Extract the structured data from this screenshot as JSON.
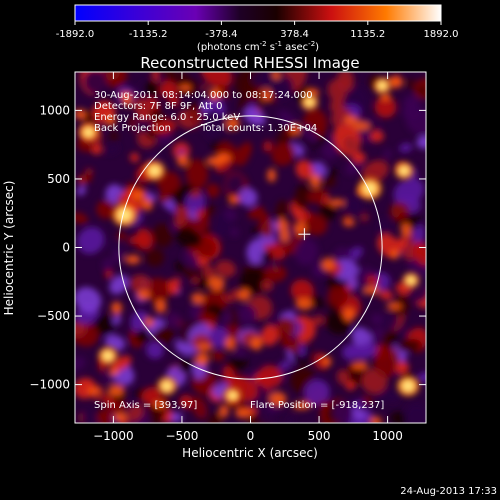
{
  "chart_data": {
    "type": "heatmap",
    "title": "Reconstructed RHESSI Image",
    "colorbar": {
      "ticks": [
        -1892.0,
        -1135.2,
        -378.4,
        378.4,
        1135.2,
        1892.0
      ],
      "tick_labels": [
        "-1892.0",
        "-1135.2",
        "-378.4",
        "378.4",
        "1135.2",
        "1892.0"
      ],
      "range": [
        -1892.0,
        1892.0
      ],
      "units_prefix": "(photons cm",
      "units_exp1": "-2",
      "units_mid": " s",
      "units_exp2": "-1",
      "units_mid2": " asec",
      "units_exp3": "-2",
      "units_suffix": ")"
    },
    "xlabel": "Heliocentric X (arcsec)",
    "ylabel": "Heliocentric Y (arcsec)",
    "xlim": [
      -1280,
      1280
    ],
    "ylim": [
      -1280,
      1280
    ],
    "xticks": [
      -1000,
      -500,
      0,
      500,
      1000
    ],
    "yticks": [
      -1000,
      -500,
      0,
      500,
      1000
    ],
    "xtick_labels": [
      "−1000",
      "−500",
      "0",
      "500",
      "1000"
    ],
    "ytick_labels": [
      "−1000",
      "−500",
      "0",
      "500",
      "1000"
    ],
    "info_lines": [
      "30-Aug-2011 08:14:04.000 to 08:17:24.000",
      "Detectors: 7F 8F 9F, Att 0",
      "Energy Range: 6.0 - 25.0 keV"
    ],
    "info_line4_left": "Back Projection",
    "info_line4_right": "Total counts: 1.30E+04",
    "spin_axis": "Spin Axis = [393,97]",
    "flare_position": "Flare Position = [-918,237]",
    "limb_radius_arcsec": 960,
    "spin_axis_point": [
      393,
      97
    ],
    "hot_spots": [
      {
        "x": -918,
        "y": 237,
        "intensity": 1.0
      },
      {
        "x": 870,
        "y": 430,
        "intensity": 0.95
      },
      {
        "x": -700,
        "y": 560,
        "intensity": 0.8
      },
      {
        "x": 1150,
        "y": -1010,
        "intensity": 0.85
      },
      {
        "x": -1180,
        "y": 840,
        "intensity": 0.7
      },
      {
        "x": -1040,
        "y": -790,
        "intensity": 0.7
      },
      {
        "x": -610,
        "y": -1010,
        "intensity": 0.7
      },
      {
        "x": 1120,
        "y": 560,
        "intensity": 0.65
      },
      {
        "x": 430,
        "y": 1060,
        "intensity": 0.6
      },
      {
        "x": 960,
        "y": 1180,
        "intensity": 0.6
      },
      {
        "x": -130,
        "y": -1080,
        "intensity": 0.6
      },
      {
        "x": 1170,
        "y": -240,
        "intensity": 0.55
      }
    ]
  },
  "colors": {
    "background": "#000000",
    "axes": "#ffffff",
    "limb": "#ffffff"
  },
  "footer": {
    "date": "24-Aug-2013 17:33"
  }
}
